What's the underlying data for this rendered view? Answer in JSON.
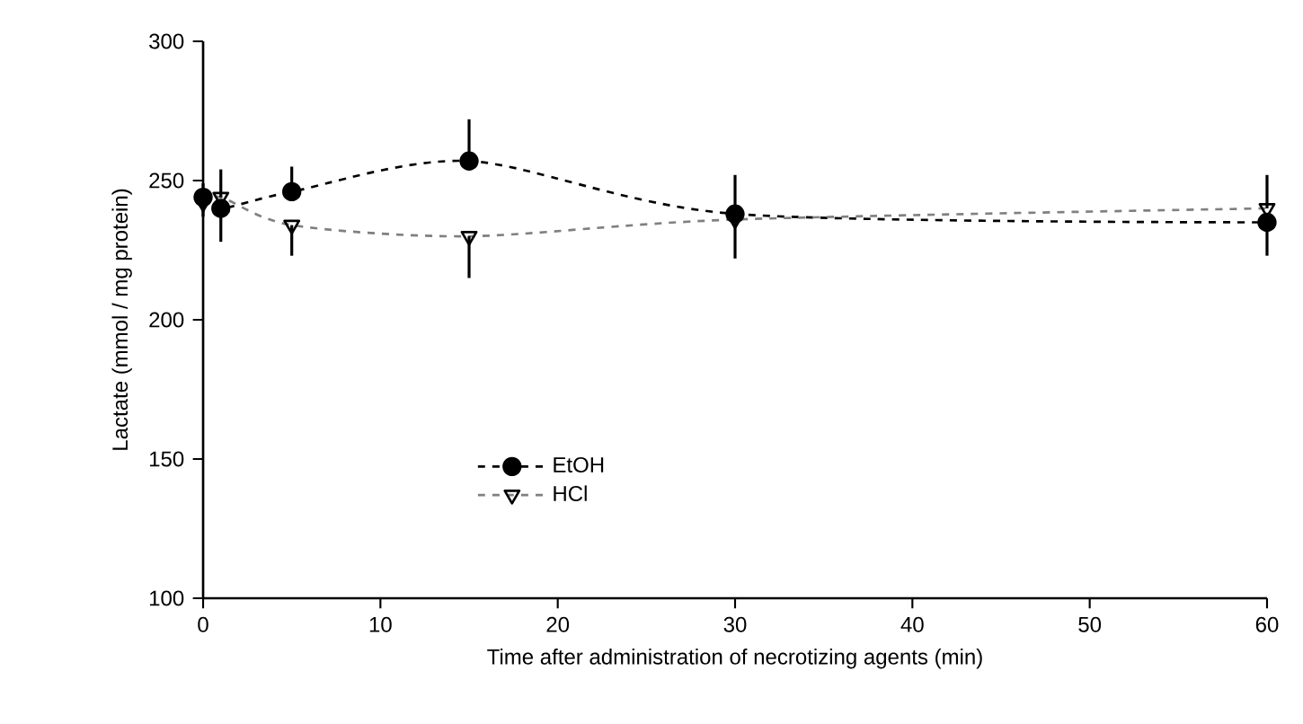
{
  "chart_data": {
    "type": "line",
    "xlabel": "Time after administration of necrotizing agents (min)",
    "ylabel": "Lactate (mmol / mg protein)",
    "xlim": [
      0,
      60
    ],
    "xticks": [
      0,
      10,
      20,
      30,
      40,
      50,
      60
    ],
    "ylim": [
      100,
      300
    ],
    "yticks": [
      100,
      150,
      200,
      250,
      300
    ],
    "legend": "bottom left",
    "line_style": "dashed",
    "grid": false,
    "series": [
      {
        "name": "EtOH",
        "color": "#000000",
        "marker": "circle",
        "x": [
          0,
          1,
          5,
          15,
          30,
          60
        ],
        "values": [
          244,
          240,
          246,
          257,
          238,
          235
        ],
        "errors": [
          [
            244,
            249
          ],
          [
            228,
            240
          ],
          [
            246,
            255
          ],
          [
            257,
            272
          ],
          [
            238,
            252
          ],
          [
            223,
            235
          ]
        ]
      },
      {
        "name": "HCl",
        "color": "#808080",
        "marker": "triangle",
        "x": [
          0,
          1,
          5,
          15,
          30,
          60
        ],
        "values": [
          242,
          244,
          234,
          230,
          236,
          240
        ],
        "errors": [
          [
            237,
            242
          ],
          [
            244,
            254
          ],
          [
            223,
            234
          ],
          [
            215,
            230
          ],
          [
            222,
            236
          ],
          [
            240,
            252
          ]
        ]
      }
    ]
  }
}
